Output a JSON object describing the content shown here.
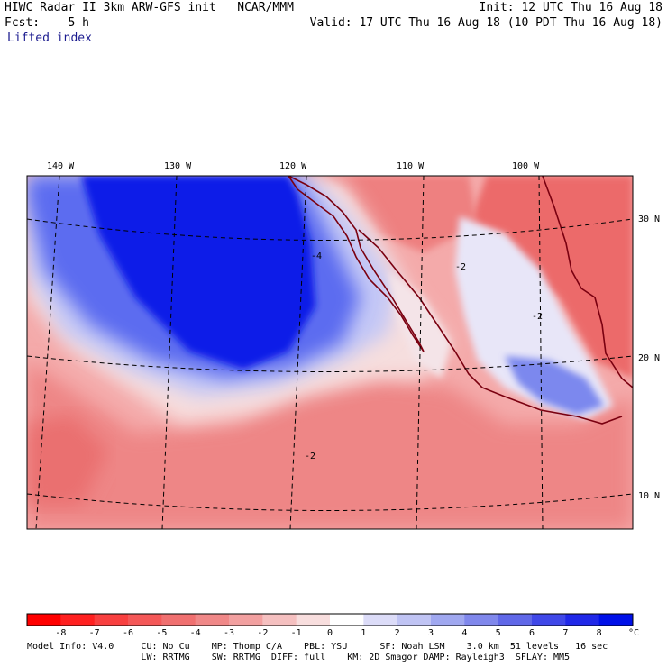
{
  "header": {
    "left_line1": "HIWC Radar II 3km ARW-GFS init   NCAR/MMM",
    "left_line2": "Fcst:    5 h",
    "field_name": "Lifted index",
    "right_line1": "Init: 12 UTC Thu 16 Aug 18",
    "right_line2": "Valid: 17 UTC Thu 16 Aug 18 (10 PDT Thu 16 Aug 18)"
  },
  "map": {
    "lon_labels": [
      "140 W",
      "130 W",
      "120 W",
      "110 W",
      "100 W"
    ],
    "lat_labels": [
      "30 N",
      "20 N",
      "10 N"
    ],
    "contour_labels": [
      "-2",
      "-2",
      "-4",
      "-2"
    ],
    "colors": {
      "strong_blue": "#0a1ee8",
      "mid_blue": "#4a5cf0",
      "light_blue": "#c8cdf8",
      "white": "#f4f4fb",
      "light_red": "#f6b0b0",
      "mid_red": "#f08080",
      "strong_red": "#e84848",
      "coast": "#7a0010"
    }
  },
  "colorbar": {
    "tick_labels": [
      "-8",
      "-7",
      "-6",
      "-5",
      "-4",
      "-3",
      "-2",
      "-1",
      "0",
      "1",
      "2",
      "3",
      "4",
      "5",
      "6",
      "7",
      "8"
    ],
    "unit": "°C",
    "colors": [
      "#ff0000",
      "#ff2020",
      "#f84040",
      "#f45858",
      "#f07070",
      "#f08888",
      "#f2a0a0",
      "#f5c0c0",
      "#f8dede",
      "#ffffff",
      "#dcdcf8",
      "#c0c4f4",
      "#a0a8f0",
      "#8088ec",
      "#6068e8",
      "#4048e8",
      "#2028e8",
      "#0010e8"
    ]
  },
  "footer": {
    "line1": "Model Info: V4.0     CU: No Cu    MP: Thomp C/A    PBL: YSU      SF: Noah LSM    3.0 km  51 levels   16 sec",
    "line2": "                     LW: RRTMG    SW: RRTMG  DIFF: full    KM: 2D Smagor DAMP: Rayleigh3  SFLAY: MM5"
  }
}
